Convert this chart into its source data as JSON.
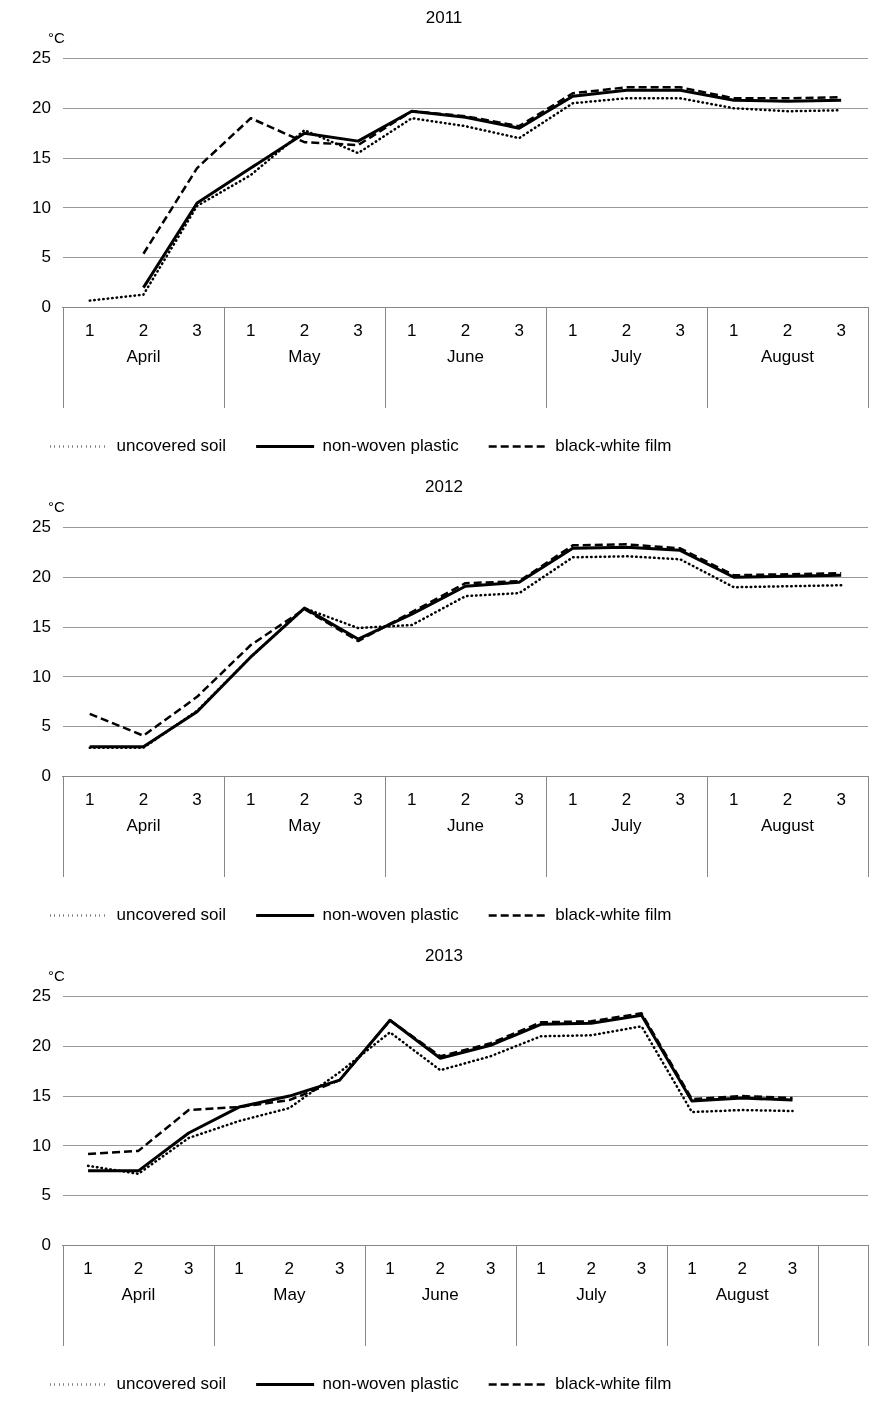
{
  "chart_data": [
    {
      "type": "line",
      "title": "2011",
      "ylabel": "°C",
      "categories": [
        "1",
        "2",
        "3",
        "1",
        "2",
        "3",
        "1",
        "2",
        "3",
        "1",
        "2",
        "3",
        "1",
        "2",
        "3"
      ],
      "annotations": [
        "April",
        "May",
        "June",
        "July",
        "August"
      ],
      "ylim": [
        0,
        25
      ],
      "yticks": [
        0,
        5,
        10,
        15,
        20,
        25
      ],
      "grid": "y",
      "legend": "bottom",
      "marker": "none",
      "series": [
        {
          "name": "uncovered soil",
          "color": "#000000",
          "line_style": "dotted",
          "values": [
            0.7,
            1.3,
            10.2,
            13.3,
            17.8,
            15.5,
            19.0,
            18.2,
            17.0,
            20.5,
            21.0,
            21.0,
            20.0,
            19.7,
            19.8
          ]
        },
        {
          "name": "non-woven plastic",
          "color": "#000000",
          "line_style": "solid",
          "values": [
            null,
            2.0,
            10.5,
            14.0,
            17.5,
            16.7,
            19.7,
            19.1,
            18.0,
            21.2,
            21.8,
            21.8,
            20.8,
            20.7,
            20.8
          ]
        },
        {
          "name": "black-white film",
          "color": "#000000",
          "line_style": "dashed",
          "values": [
            null,
            5.4,
            14.0,
            19.0,
            16.6,
            16.3,
            19.7,
            19.2,
            18.2,
            21.5,
            22.1,
            22.1,
            21.0,
            21.0,
            21.1
          ]
        }
      ]
    },
    {
      "type": "line",
      "title": "2012",
      "ylabel": "°C",
      "categories": [
        "1",
        "2",
        "3",
        "1",
        "2",
        "3",
        "1",
        "2",
        "3",
        "1",
        "2",
        "3",
        "1",
        "2",
        "3"
      ],
      "annotations": [
        "April",
        "May",
        "June",
        "July",
        "August"
      ],
      "ylim": [
        0,
        25
      ],
      "yticks": [
        0,
        5,
        10,
        15,
        20,
        25
      ],
      "grid": "y",
      "legend": "bottom",
      "marker": "none",
      "series": [
        {
          "name": "uncovered soil",
          "color": "#000000",
          "line_style": "dotted",
          "values": [
            2.9,
            2.9,
            6.6,
            12.0,
            16.9,
            14.9,
            15.2,
            18.1,
            18.4,
            22.0,
            22.1,
            21.8,
            19.0,
            19.1,
            19.2
          ]
        },
        {
          "name": "non-woven plastic",
          "color": "#000000",
          "line_style": "solid",
          "values": [
            3.0,
            3.0,
            6.5,
            12.0,
            16.9,
            13.8,
            16.3,
            19.1,
            19.5,
            22.9,
            23.0,
            22.7,
            20.0,
            20.1,
            20.2
          ]
        },
        {
          "name": "black-white film",
          "color": "#000000",
          "line_style": "dashed",
          "values": [
            6.3,
            4.1,
            8.0,
            13.2,
            16.8,
            13.6,
            16.5,
            19.4,
            19.6,
            23.2,
            23.3,
            22.9,
            20.2,
            20.3,
            20.4
          ]
        }
      ]
    },
    {
      "type": "line",
      "title": "2013",
      "ylabel": "°C",
      "categories": [
        "1",
        "2",
        "3",
        "1",
        "2",
        "3",
        "1",
        "2",
        "3",
        "1",
        "2",
        "3",
        "1",
        "2",
        "3",
        null
      ],
      "annotations": [
        "April",
        "May",
        "June",
        "July",
        "August"
      ],
      "ylim": [
        0,
        25
      ],
      "yticks": [
        0,
        5,
        10,
        15,
        20,
        25
      ],
      "grid": "y",
      "legend": "bottom",
      "marker": "none",
      "series": [
        {
          "name": "uncovered soil",
          "color": "#000000",
          "line_style": "dotted",
          "values": [
            8.0,
            7.2,
            10.8,
            12.5,
            13.8,
            17.4,
            21.4,
            17.6,
            19.0,
            21.0,
            21.1,
            22.0,
            13.4,
            13.6,
            13.5,
            null
          ]
        },
        {
          "name": "non-woven plastic",
          "color": "#000000",
          "line_style": "solid",
          "values": [
            7.5,
            7.5,
            11.3,
            13.9,
            15.0,
            16.6,
            22.6,
            18.8,
            20.1,
            22.2,
            22.3,
            23.1,
            14.5,
            14.8,
            14.6,
            null
          ]
        },
        {
          "name": "black-white film",
          "color": "#000000",
          "line_style": "dashed",
          "values": [
            9.2,
            9.5,
            13.6,
            13.9,
            14.6,
            16.6,
            22.6,
            19.0,
            20.3,
            22.4,
            22.5,
            23.3,
            14.7,
            15.0,
            14.8,
            null
          ]
        }
      ]
    }
  ]
}
